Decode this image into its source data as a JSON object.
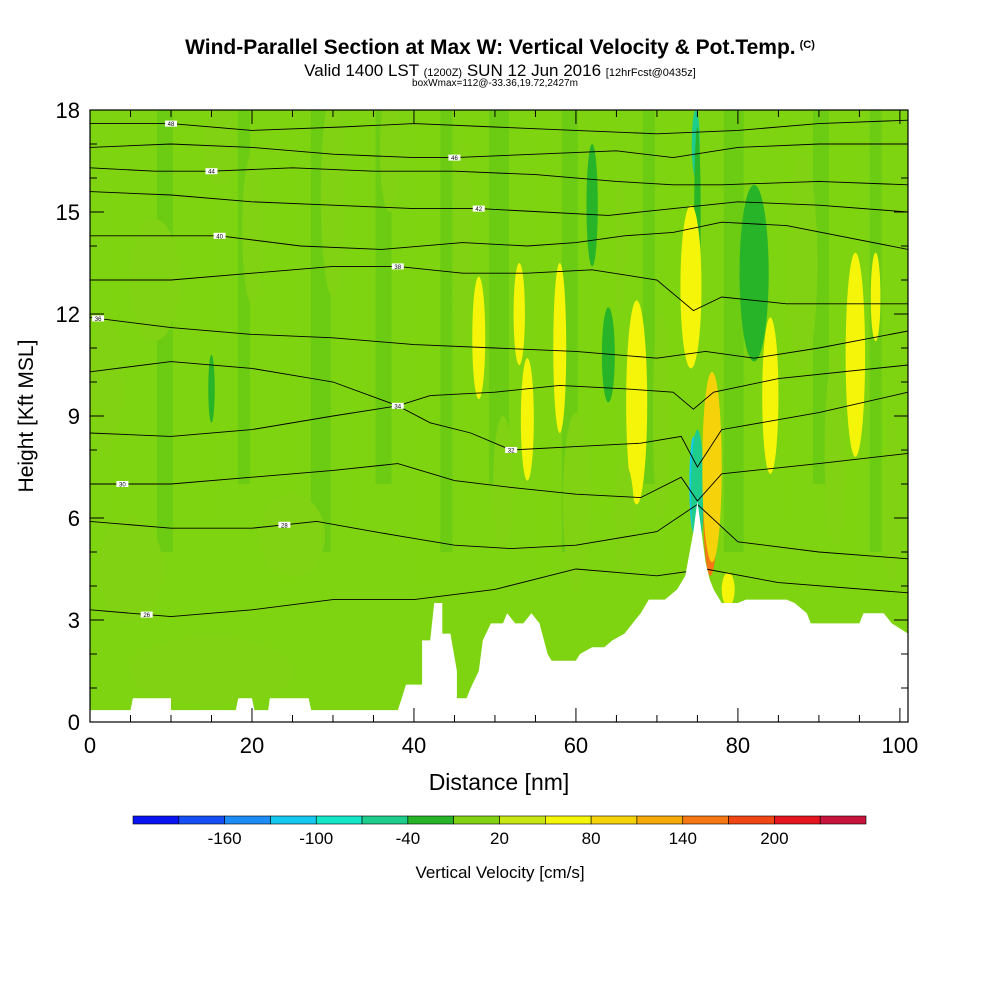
{
  "title": {
    "main": "Wind-Parallel Section at Max W: Vertical Velocity & Pot.Temp.",
    "tag": "(C)",
    "sub_a": "Valid 1400 LST",
    "sub_b": "(1200Z)",
    "sub_c": "SUN 12 Jun 2016",
    "sub_d": "[12hrFcst@0435z]",
    "box": "boxWmax=112@-33.36,19.72,2427m"
  },
  "colors": {
    "background_field": "#7fd411",
    "mid_green": "#5cc517",
    "dark_green": "#2fb022",
    "terrain": "#ffffff"
  },
  "chart_data": {
    "type": "heatmap",
    "xlabel": "Distance [nm]",
    "ylabel": "Height [Kft MSL]",
    "xlim": [
      0,
      101
    ],
    "ylim": [
      0,
      18
    ],
    "xticks": [
      0,
      20,
      40,
      60,
      80,
      100
    ],
    "yticks": [
      0,
      3,
      6,
      9,
      12,
      15,
      18
    ],
    "grid": false,
    "colorbar": {
      "label": "Vertical Velocity [cm/s]",
      "tick_labels": [
        "-160",
        "-100",
        "-40",
        "20",
        "80",
        "140",
        "200"
      ],
      "tick_values": [
        -160,
        -100,
        -40,
        20,
        80,
        140,
        200
      ],
      "levels": [
        -190,
        -160,
        -130,
        -100,
        -70,
        -40,
        -10,
        20,
        50,
        80,
        110,
        140,
        170,
        200,
        230
      ],
      "colors": [
        "#0a14f0",
        "#1450f5",
        "#1e8cf5",
        "#14c8f0",
        "#14e6c8",
        "#1ecd8c",
        "#28b428",
        "#82d214",
        "#c8e614",
        "#f5f50a",
        "#f5d20a",
        "#f5aa0a",
        "#f57814",
        "#f04614",
        "#e6141e",
        "#c8143c"
      ]
    },
    "terrain_profile": [
      [
        0,
        0.35
      ],
      [
        3,
        0.35
      ],
      [
        5,
        0.35
      ],
      [
        5.3,
        0.7
      ],
      [
        10,
        0.7
      ],
      [
        10,
        0.35
      ],
      [
        14,
        0.35
      ],
      [
        18,
        0.35
      ],
      [
        18.3,
        0.7
      ],
      [
        20,
        0.7
      ],
      [
        20.3,
        0.35
      ],
      [
        22,
        0.35
      ],
      [
        22.2,
        0.7
      ],
      [
        27,
        0.7
      ],
      [
        27.3,
        0.35
      ],
      [
        31,
        0.35
      ],
      [
        38,
        0.35
      ],
      [
        38.5,
        0.7
      ],
      [
        39,
        1.1
      ],
      [
        41,
        1.1
      ],
      [
        41,
        2.4
      ],
      [
        42,
        2.4
      ],
      [
        42.5,
        3.5
      ],
      [
        43.5,
        3.5
      ],
      [
        43.5,
        2.6
      ],
      [
        44.5,
        2.6
      ],
      [
        45.3,
        1.5
      ],
      [
        45.3,
        0.7
      ],
      [
        46.5,
        0.7
      ],
      [
        47,
        1.0
      ],
      [
        48,
        1.5
      ],
      [
        48.5,
        2.4
      ],
      [
        49.5,
        2.9
      ],
      [
        51,
        2.9
      ],
      [
        51.5,
        3.2
      ],
      [
        52.5,
        2.9
      ],
      [
        53.5,
        2.9
      ],
      [
        54.5,
        3.2
      ],
      [
        55.5,
        2.9
      ],
      [
        56.5,
        2.0
      ],
      [
        57,
        1.8
      ],
      [
        60,
        1.8
      ],
      [
        60.5,
        2.0
      ],
      [
        62,
        2.2
      ],
      [
        63.5,
        2.2
      ],
      [
        64.5,
        2.4
      ],
      [
        66,
        2.6
      ],
      [
        67,
        2.9
      ],
      [
        68,
        3.2
      ],
      [
        69,
        3.6
      ],
      [
        71,
        3.6
      ],
      [
        72.5,
        3.9
      ],
      [
        73.5,
        4.3
      ],
      [
        74.5,
        5.6
      ],
      [
        75,
        6.5
      ],
      [
        75.5,
        5.6
      ],
      [
        76,
        4.7
      ],
      [
        76.5,
        4.2
      ],
      [
        77,
        3.9
      ],
      [
        78,
        3.5
      ],
      [
        79,
        3.5
      ],
      [
        80,
        3.5
      ],
      [
        81,
        3.6
      ],
      [
        86,
        3.6
      ],
      [
        87,
        3.5
      ],
      [
        88.5,
        3.2
      ],
      [
        89,
        2.9
      ],
      [
        95,
        2.9
      ],
      [
        95.5,
        3.2
      ],
      [
        98,
        3.2
      ],
      [
        99,
        2.9
      ],
      [
        101,
        2.6
      ]
    ],
    "theta_contours": [
      {
        "label": "26",
        "label_x": 7,
        "points": [
          [
            0,
            3.3
          ],
          [
            10,
            3.1
          ],
          [
            20,
            3.3
          ],
          [
            30,
            3.6
          ],
          [
            40,
            3.6
          ],
          [
            50,
            3.9
          ],
          [
            60,
            4.5
          ],
          [
            70,
            4.3
          ],
          [
            76,
            4.5
          ],
          [
            85,
            4.1
          ],
          [
            101,
            3.8
          ]
        ]
      },
      {
        "label": "28",
        "label_x": 24,
        "points": [
          [
            0,
            5.9
          ],
          [
            10,
            5.7
          ],
          [
            20,
            5.7
          ],
          [
            28,
            5.9
          ],
          [
            35,
            5.6
          ],
          [
            40,
            5.4
          ],
          [
            45,
            5.2
          ],
          [
            52,
            5.1
          ],
          [
            60,
            5.2
          ],
          [
            70,
            5.6
          ],
          [
            75,
            6.4
          ],
          [
            80,
            5.3
          ],
          [
            90,
            5.0
          ],
          [
            101,
            4.8
          ]
        ]
      },
      {
        "label": "30",
        "label_x": 4,
        "points": [
          [
            0,
            7.0
          ],
          [
            10,
            7.0
          ],
          [
            20,
            7.2
          ],
          [
            30,
            7.4
          ],
          [
            38,
            7.6
          ],
          [
            45,
            7.1
          ],
          [
            52,
            6.9
          ],
          [
            60,
            6.7
          ],
          [
            68,
            6.6
          ],
          [
            73,
            7.2
          ],
          [
            75,
            6.5
          ],
          [
            78,
            7.3
          ],
          [
            90,
            7.6
          ],
          [
            101,
            7.9
          ]
        ]
      },
      {
        "label": "32",
        "label_x": 52,
        "points": [
          [
            0,
            8.5
          ],
          [
            10,
            8.4
          ],
          [
            20,
            8.6
          ],
          [
            30,
            9.0
          ],
          [
            38,
            9.3
          ],
          [
            42,
            8.8
          ],
          [
            47,
            8.5
          ],
          [
            52,
            8.0
          ],
          [
            60,
            8.1
          ],
          [
            68,
            8.2
          ],
          [
            73,
            8.4
          ],
          [
            75,
            7.5
          ],
          [
            78,
            8.6
          ],
          [
            90,
            9.1
          ],
          [
            101,
            9.7
          ]
        ]
      },
      {
        "label": "34",
        "label_x": 38,
        "points": [
          [
            0,
            10.3
          ],
          [
            10,
            10.6
          ],
          [
            20,
            10.4
          ],
          [
            30,
            10.0
          ],
          [
            38,
            9.3
          ],
          [
            42,
            9.6
          ],
          [
            50,
            9.7
          ],
          [
            58,
            9.9
          ],
          [
            66,
            9.8
          ],
          [
            72,
            9.7
          ],
          [
            74.5,
            9.2
          ],
          [
            77,
            9.7
          ],
          [
            85,
            10.1
          ],
          [
            101,
            10.5
          ]
        ]
      },
      {
        "label": "36",
        "label_x": 1,
        "points": [
          [
            0,
            11.9
          ],
          [
            10,
            11.6
          ],
          [
            20,
            11.4
          ],
          [
            30,
            11.3
          ],
          [
            40,
            11.1
          ],
          [
            50,
            11.0
          ],
          [
            60,
            10.9
          ],
          [
            70,
            10.7
          ],
          [
            76,
            10.9
          ],
          [
            82,
            10.7
          ],
          [
            90,
            11.0
          ],
          [
            101,
            11.5
          ]
        ]
      },
      {
        "label": "38",
        "label_x": 38,
        "points": [
          [
            0,
            13.0
          ],
          [
            10,
            13.0
          ],
          [
            20,
            13.2
          ],
          [
            30,
            13.4
          ],
          [
            38,
            13.4
          ],
          [
            46,
            13.2
          ],
          [
            54,
            13.2
          ],
          [
            62,
            13.3
          ],
          [
            70,
            13.0
          ],
          [
            74.5,
            12.1
          ],
          [
            78,
            12.5
          ],
          [
            86,
            12.3
          ],
          [
            101,
            12.3
          ]
        ]
      },
      {
        "label": "40",
        "label_x": 16,
        "points": [
          [
            0,
            14.3
          ],
          [
            8,
            14.3
          ],
          [
            16,
            14.3
          ],
          [
            26,
            14.0
          ],
          [
            36,
            13.9
          ],
          [
            46,
            14.1
          ],
          [
            54,
            14.0
          ],
          [
            60,
            14.1
          ],
          [
            66,
            14.3
          ],
          [
            72,
            14.4
          ],
          [
            78,
            14.7
          ],
          [
            86,
            14.6
          ],
          [
            101,
            13.9
          ]
        ]
      },
      {
        "label": "42",
        "label_x": 48,
        "points": [
          [
            0,
            15.6
          ],
          [
            10,
            15.5
          ],
          [
            20,
            15.3
          ],
          [
            30,
            15.2
          ],
          [
            40,
            15.1
          ],
          [
            48,
            15.1
          ],
          [
            56,
            15.0
          ],
          [
            64,
            14.9
          ],
          [
            72,
            15.1
          ],
          [
            80,
            15.3
          ],
          [
            90,
            15.2
          ],
          [
            101,
            15.0
          ]
        ]
      },
      {
        "label": "44",
        "label_x": 15,
        "points": [
          [
            0,
            16.3
          ],
          [
            8,
            16.2
          ],
          [
            15,
            16.2
          ],
          [
            25,
            16.3
          ],
          [
            35,
            16.2
          ],
          [
            45,
            16.2
          ],
          [
            55,
            16.1
          ],
          [
            65,
            15.9
          ],
          [
            72,
            15.8
          ],
          [
            78,
            15.8
          ],
          [
            90,
            15.9
          ],
          [
            101,
            15.8
          ]
        ]
      },
      {
        "label": "46",
        "label_x": 45,
        "points": [
          [
            0,
            16.9
          ],
          [
            10,
            17.0
          ],
          [
            20,
            16.9
          ],
          [
            30,
            16.7
          ],
          [
            40,
            16.6
          ],
          [
            45,
            16.6
          ],
          [
            55,
            16.7
          ],
          [
            65,
            16.8
          ],
          [
            72,
            16.6
          ],
          [
            80,
            16.9
          ],
          [
            90,
            17.0
          ],
          [
            101,
            17.0
          ]
        ]
      },
      {
        "label": "48",
        "label_x": 10,
        "points": [
          [
            0,
            17.6
          ],
          [
            10,
            17.6
          ],
          [
            20,
            17.4
          ],
          [
            31,
            17.5
          ],
          [
            40,
            17.6
          ],
          [
            50,
            17.5
          ],
          [
            60,
            17.4
          ],
          [
            70,
            17.3
          ],
          [
            80,
            17.4
          ],
          [
            90,
            17.6
          ],
          [
            101,
            17.7
          ]
        ]
      }
    ],
    "vertical_velocity_cells": [
      {
        "x": 74.5,
        "y": 7.0,
        "rx": 0.5,
        "ry": 1.4,
        "w": -130
      },
      {
        "x": 75.0,
        "y": 6.8,
        "rx": 0.8,
        "ry": 1.8,
        "w": -70
      },
      {
        "x": 76.6,
        "y": 7.2,
        "rx": 0.6,
        "ry": 1.3,
        "w": 230
      },
      {
        "x": 76.6,
        "y": 6.5,
        "rx": 0.9,
        "ry": 2.2,
        "w": 140
      },
      {
        "x": 76.8,
        "y": 7.5,
        "rx": 1.2,
        "ry": 2.8,
        "w": 80
      },
      {
        "x": 74.8,
        "y": 17.0,
        "rx": 0.5,
        "ry": 1.0,
        "w": -70
      },
      {
        "x": 75.0,
        "y": 15.0,
        "rx": 0.4,
        "ry": 2.5,
        "w": -40
      },
      {
        "x": 74.3,
        "y": 12.8,
        "rx": 0.6,
        "ry": 1.1,
        "w": 110
      },
      {
        "x": 74.3,
        "y": 12.8,
        "rx": 0.9,
        "ry": 1.8,
        "w": 80
      },
      {
        "x": 74.2,
        "y": 12.8,
        "rx": 1.3,
        "ry": 2.4,
        "w": 50
      },
      {
        "x": 67.5,
        "y": 9.6,
        "rx": 0.5,
        "ry": 1.2,
        "w": 110
      },
      {
        "x": 67.5,
        "y": 9.6,
        "rx": 0.8,
        "ry": 1.9,
        "w": 80
      },
      {
        "x": 67.5,
        "y": 9.4,
        "rx": 1.3,
        "ry": 3.0,
        "w": 50
      },
      {
        "x": 81.8,
        "y": 13.2,
        "rx": 1.0,
        "ry": 1.4,
        "w": -70
      },
      {
        "x": 82.0,
        "y": 13.2,
        "rx": 1.8,
        "ry": 2.6,
        "w": -40
      },
      {
        "x": 84.0,
        "y": 9.6,
        "rx": 1.0,
        "ry": 2.3,
        "w": 50
      },
      {
        "x": 64.0,
        "y": 10.8,
        "rx": 0.8,
        "ry": 1.4,
        "w": -40
      },
      {
        "x": 62.0,
        "y": 15.2,
        "rx": 0.7,
        "ry": 1.8,
        "w": -40
      },
      {
        "x": 65.5,
        "y": 14.0,
        "rx": 0.6,
        "ry": 2.0,
        "w": -10
      },
      {
        "x": 54.0,
        "y": 8.9,
        "rx": 0.8,
        "ry": 1.8,
        "w": 50
      },
      {
        "x": 58.0,
        "y": 11.0,
        "rx": 0.8,
        "ry": 2.5,
        "w": 50
      },
      {
        "x": 53.0,
        "y": 12.0,
        "rx": 0.7,
        "ry": 1.5,
        "w": 50
      },
      {
        "x": 48.0,
        "y": 11.3,
        "rx": 0.8,
        "ry": 1.8,
        "w": 50
      },
      {
        "x": 94.5,
        "y": 10.8,
        "rx": 1.2,
        "ry": 3.0,
        "w": 50
      },
      {
        "x": 97.0,
        "y": 12.5,
        "rx": 0.6,
        "ry": 1.3,
        "w": 50
      },
      {
        "x": 78.8,
        "y": 3.9,
        "rx": 0.8,
        "ry": 0.5,
        "w": 50
      },
      {
        "x": 20.0,
        "y": 14.5,
        "rx": 1.2,
        "ry": 2.2,
        "w": -10
      },
      {
        "x": 16.0,
        "y": 17.0,
        "rx": 2.0,
        "ry": 1.2,
        "w": -10
      },
      {
        "x": 8.0,
        "y": 13.0,
        "rx": 3.0,
        "ry": 1.8,
        "w": -10
      },
      {
        "x": 30.0,
        "y": 15.5,
        "rx": 1.5,
        "ry": 3.0,
        "w": -10
      },
      {
        "x": 37.0,
        "y": 16.8,
        "rx": 1.2,
        "ry": 1.8,
        "w": -10
      },
      {
        "x": 46.0,
        "y": 14.0,
        "rx": 1.2,
        "ry": 3.0,
        "w": -10
      },
      {
        "x": 51.0,
        "y": 7.0,
        "rx": 1.2,
        "ry": 2.0,
        "w": -10
      },
      {
        "x": 60.0,
        "y": 6.5,
        "rx": 1.6,
        "ry": 2.6,
        "w": -10
      },
      {
        "x": 66.0,
        "y": 6.0,
        "rx": 1.2,
        "ry": 1.6,
        "w": -10
      },
      {
        "x": 70.5,
        "y": 9.0,
        "rx": 1.0,
        "ry": 3.0,
        "w": -10
      },
      {
        "x": 88.0,
        "y": 13.5,
        "rx": 1.8,
        "ry": 3.2,
        "w": -10
      },
      {
        "x": 92.0,
        "y": 8.0,
        "rx": 1.3,
        "ry": 2.8,
        "w": -10
      },
      {
        "x": 99.0,
        "y": 6.5,
        "rx": 1.0,
        "ry": 2.4,
        "w": -10
      },
      {
        "x": 15.0,
        "y": 1.5,
        "rx": 10.0,
        "ry": 1.0,
        "w": -10
      },
      {
        "x": 25.0,
        "y": 5.5,
        "rx": 4.0,
        "ry": 1.2,
        "w": -10
      },
      {
        "x": 5.0,
        "y": 4.5,
        "rx": 4.0,
        "ry": 1.5,
        "w": -10
      },
      {
        "x": 2.0,
        "y": 10.0,
        "rx": 2.0,
        "ry": 2.0,
        "w": -10
      },
      {
        "x": 15.0,
        "y": 9.8,
        "rx": 0.4,
        "ry": 1.0,
        "w": -40
      }
    ]
  }
}
